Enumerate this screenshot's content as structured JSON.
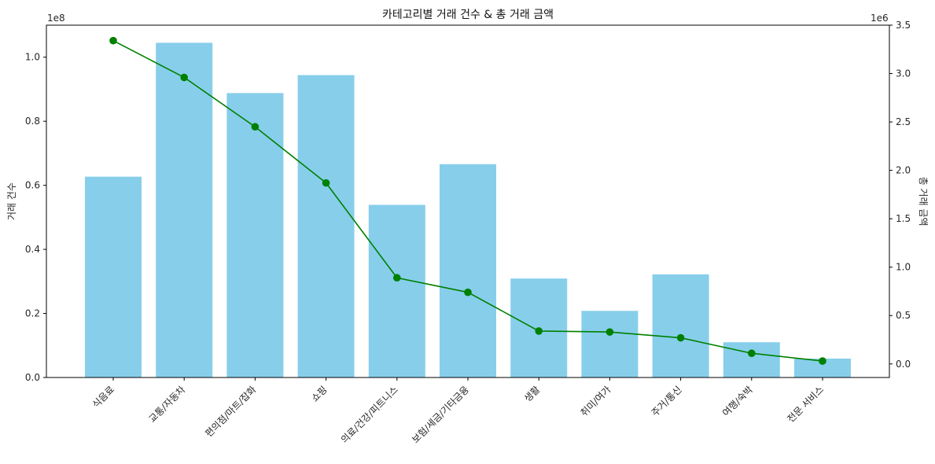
{
  "chart_data": {
    "type": "bar",
    "title": "카테고리별 거래 건수 & 총 거래 금액",
    "categories": [
      "식음료",
      "교통/자동차",
      "편의점/마트/잡화",
      "쇼핑",
      "의료/건강/피트니스",
      "보험/세금/기타금융",
      "생활",
      "취미/여가",
      "주거/통신",
      "여행/숙박",
      "전문 서비스"
    ],
    "series": [
      {
        "type": "bar",
        "axis": "left",
        "color": "#87CEEB",
        "values": [
          62700000,
          104500000,
          88800000,
          94400000,
          53900000,
          66600000,
          30900000,
          20800000,
          32200000,
          11000000,
          5900000
        ]
      },
      {
        "type": "line",
        "axis": "right",
        "color": "#008000",
        "marker": "circle",
        "values": [
          3340000,
          2960000,
          2450000,
          1870000,
          890000,
          740000,
          340000,
          330000,
          270000,
          110000,
          30000
        ]
      }
    ],
    "y_left": {
      "label": "거래 건수",
      "offset_text": "1e8",
      "ylim": [
        0,
        110000000
      ],
      "ticks": [
        0,
        20000000,
        40000000,
        60000000,
        80000000,
        100000000
      ],
      "tick_labels": [
        "0.0",
        "0.2",
        "0.4",
        "0.6",
        "0.8",
        "1.0"
      ]
    },
    "y_right": {
      "label": "총 거래 금액",
      "offset_text": "1e6",
      "ylim": [
        -140000,
        3500000
      ],
      "ticks": [
        0,
        500000,
        1000000,
        1500000,
        2000000,
        2500000,
        3000000,
        3500000
      ],
      "tick_labels": [
        "0.0",
        "0.5",
        "1.0",
        "1.5",
        "2.0",
        "2.5",
        "3.0",
        "3.5"
      ]
    },
    "grid": false
  }
}
